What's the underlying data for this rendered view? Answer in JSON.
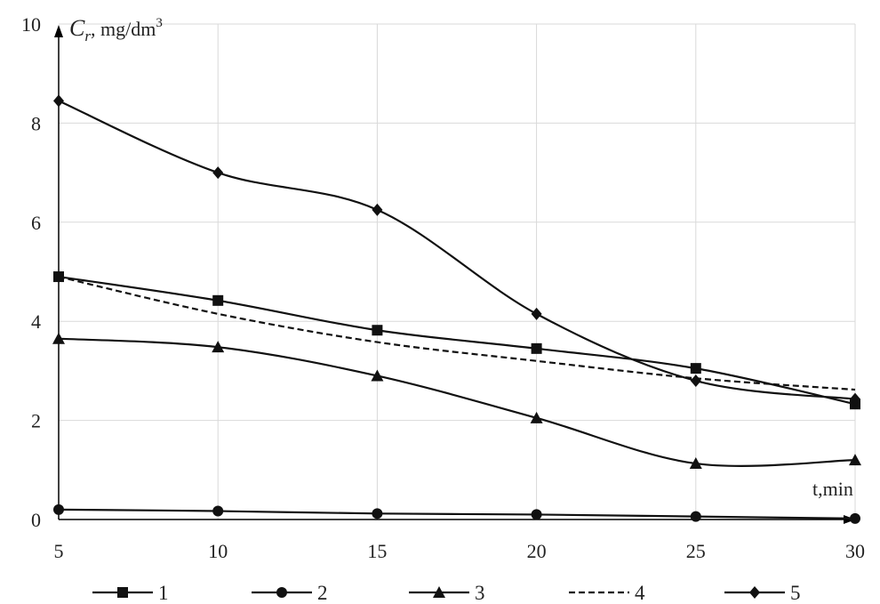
{
  "chart_data": {
    "type": "line",
    "x": [
      5,
      10,
      15,
      20,
      25,
      30
    ],
    "xlim": [
      5,
      30
    ],
    "ylim": [
      0,
      10
    ],
    "x_ticks": [
      "5",
      "10",
      "15",
      "20",
      "25",
      "30"
    ],
    "y_ticks": [
      "0",
      "2",
      "4",
      "6",
      "8",
      "10"
    ],
    "ylabel_main": "C",
    "ylabel_sub": "r",
    "ylabel_unit": ", mg/dm",
    "ylabel_sup": "3",
    "xlabel": "t,min",
    "grid": true,
    "legend_position": "bottom",
    "series": [
      {
        "name": "1",
        "values": [
          4.9,
          4.42,
          3.82,
          3.45,
          3.05,
          2.33
        ],
        "marker": "square",
        "dashed": false
      },
      {
        "name": "2",
        "values": [
          0.2,
          0.17,
          0.12,
          0.1,
          0.06,
          0.02
        ],
        "marker": "circle",
        "dashed": false
      },
      {
        "name": "3",
        "values": [
          3.65,
          3.48,
          2.9,
          2.05,
          1.13,
          1.2
        ],
        "marker": "triangle",
        "dashed": false
      },
      {
        "name": "4",
        "values": [
          4.9,
          4.15,
          3.58,
          3.2,
          2.85,
          2.62
        ],
        "marker": "none",
        "dashed": true
      },
      {
        "name": "5",
        "values": [
          8.45,
          7.0,
          6.25,
          4.15,
          2.8,
          2.43
        ],
        "marker": "diamond",
        "dashed": false
      }
    ]
  }
}
